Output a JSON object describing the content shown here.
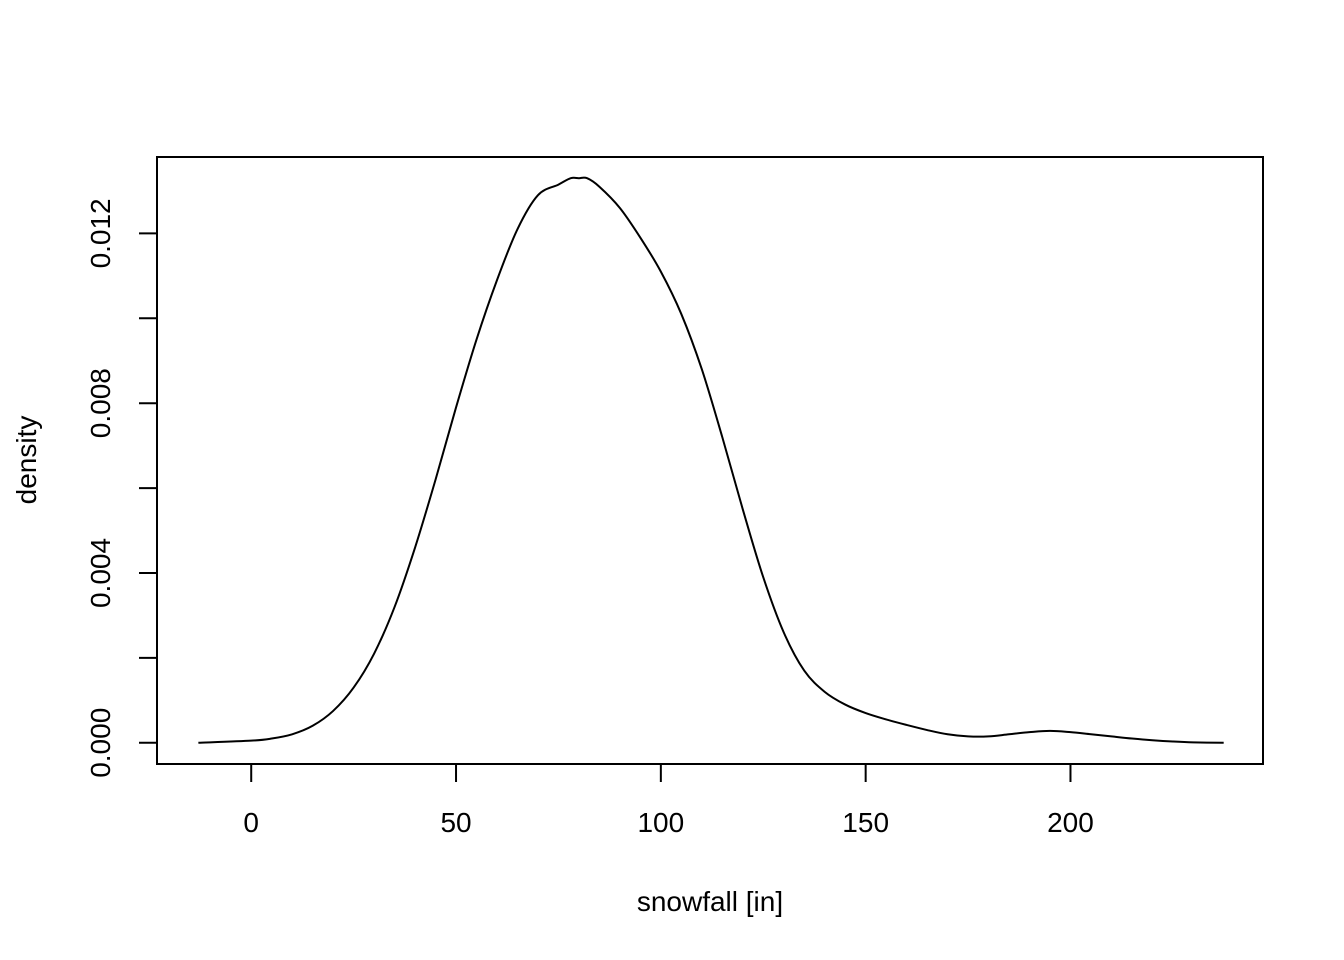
{
  "chart_data": {
    "type": "line",
    "title": "",
    "xlabel": "snowfall [in]",
    "ylabel": "density",
    "xlim": [
      -23,
      247
    ],
    "ylim": [
      -0.0005,
      0.0138
    ],
    "x_ticks": [
      0,
      50,
      100,
      150,
      200
    ],
    "x_tick_labels": [
      "0",
      "50",
      "100",
      "150",
      "200"
    ],
    "y_ticks": [
      0,
      0.002,
      0.004,
      0.006,
      0.008,
      0.01,
      0.012
    ],
    "y_tick_labels": [
      "0.000",
      "",
      "0.004",
      "",
      "0.008",
      "",
      "0.012"
    ],
    "grid": false,
    "series": [
      {
        "x": [
          -12.9,
          0,
          5,
          10,
          15,
          20,
          25,
          30,
          35,
          40,
          45,
          50,
          55,
          60,
          65,
          70,
          75,
          78,
          80,
          82,
          85,
          90,
          95,
          100,
          105,
          110,
          115,
          120,
          125,
          130,
          135,
          140,
          145,
          150,
          155,
          160,
          165,
          170,
          175,
          180,
          185,
          190,
          195,
          200,
          205,
          210,
          215,
          220,
          225,
          230,
          237.4
        ],
        "y": [
          0.0,
          5e-05,
          0.0001,
          0.0002,
          0.0004,
          0.00075,
          0.0013,
          0.0021,
          0.0032,
          0.0046,
          0.0062,
          0.0079,
          0.0095,
          0.0109,
          0.0121,
          0.0129,
          0.01315,
          0.0133,
          0.0133,
          0.0133,
          0.0131,
          0.0126,
          0.0119,
          0.0111,
          0.0101,
          0.0088,
          0.0072,
          0.0055,
          0.0039,
          0.0026,
          0.0017,
          0.0012,
          0.0009,
          0.0007,
          0.00055,
          0.00042,
          0.0003,
          0.0002,
          0.00015,
          0.00015,
          0.0002,
          0.00025,
          0.00028,
          0.00025,
          0.0002,
          0.00015,
          0.0001,
          6e-05,
          3e-05,
          1e-05,
          0.0
        ]
      }
    ]
  }
}
